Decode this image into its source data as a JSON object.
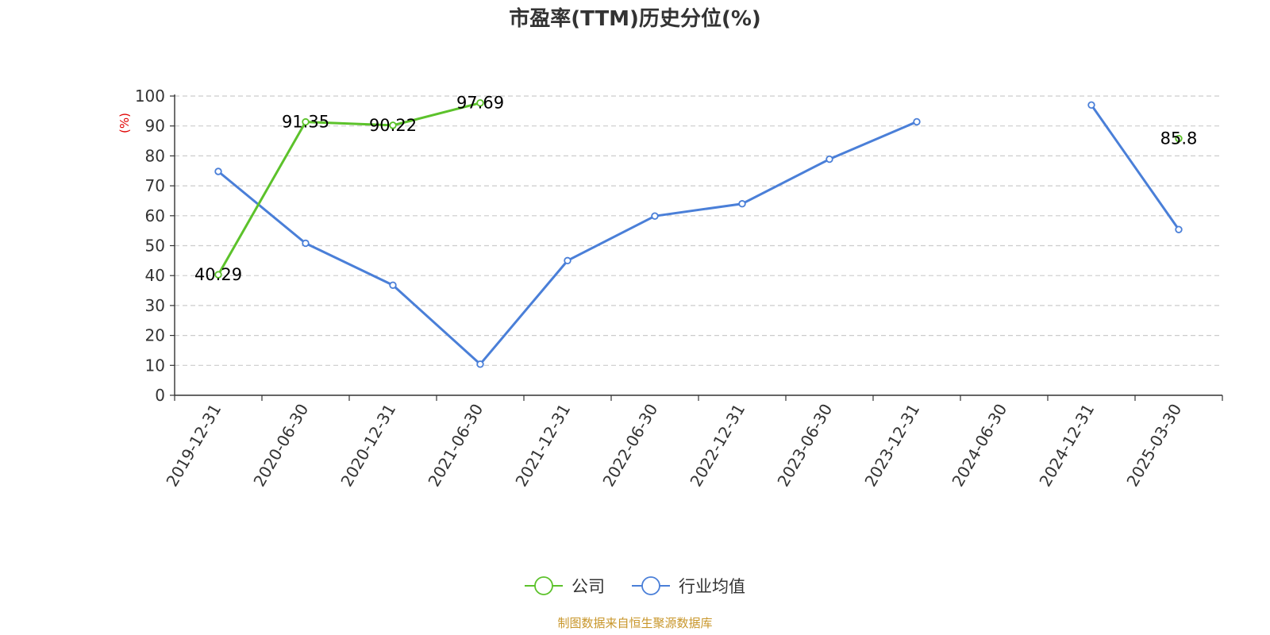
{
  "chart_data": {
    "type": "line",
    "title": "市盈率(TTM)历史分位(%)",
    "ylabel": "(%)",
    "xlabel": "",
    "ylim": [
      0,
      100
    ],
    "yticks": [
      0,
      10,
      20,
      30,
      40,
      50,
      60,
      70,
      80,
      90,
      100
    ],
    "grid": true,
    "legend_position": "bottom-center",
    "categories": [
      "2019-12-31",
      "2020-06-30",
      "2020-12-31",
      "2021-06-30",
      "2021-12-31",
      "2022-06-30",
      "2022-12-31",
      "2023-06-30",
      "2023-12-31",
      "2024-06-30",
      "2024-12-31",
      "2025-03-30"
    ],
    "series": [
      {
        "name": "公司",
        "color": "#5cc22b",
        "values": [
          40.29,
          91.35,
          90.22,
          97.69,
          null,
          null,
          null,
          null,
          null,
          null,
          null,
          85.8
        ],
        "labels": [
          "40.29",
          "91.35",
          "90.22",
          "97.69",
          "",
          "",
          "",
          "",
          "",
          "",
          "",
          "85.8"
        ]
      },
      {
        "name": "行业均值",
        "color": "#4a7fd8",
        "values": [
          74.8,
          50.8,
          36.8,
          10.4,
          45.0,
          59.9,
          64.0,
          78.9,
          91.4,
          null,
          97.0,
          55.4
        ],
        "labels": []
      }
    ],
    "source": "制图数据来自恒生聚源数据库"
  }
}
